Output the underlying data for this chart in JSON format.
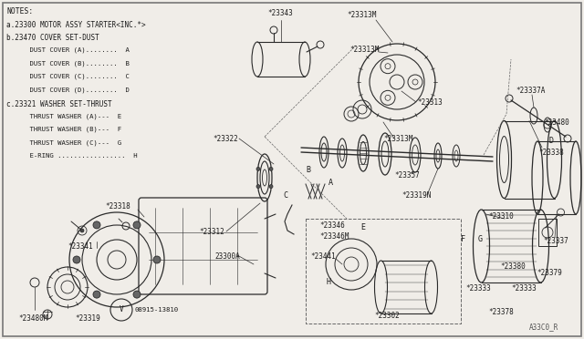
{
  "bg_color": "#f0ede8",
  "line_color": "#2a2a2a",
  "text_color": "#1a1a1a",
  "notes": [
    "NOTES:",
    "a.23300 MOTOR ASSY STARTER<INC.*>",
    "b.23470 COVER SET-DUST",
    "    DUST COVER (A)........  A",
    "    DUST COVER (B)........  B",
    "    DUST COVER (C)........  C",
    "    DUST COVER (D)........  D",
    "c.23321 WASHER SET-THRUST",
    "    THRUST WASHER (A)---  E",
    "    THRUST WASHER (B)---  F",
    "    THRUST WASHER (C)---  G",
    "    E-RING .................  H"
  ],
  "footer": "A33C0_R",
  "stamp_text": "08915-13810"
}
